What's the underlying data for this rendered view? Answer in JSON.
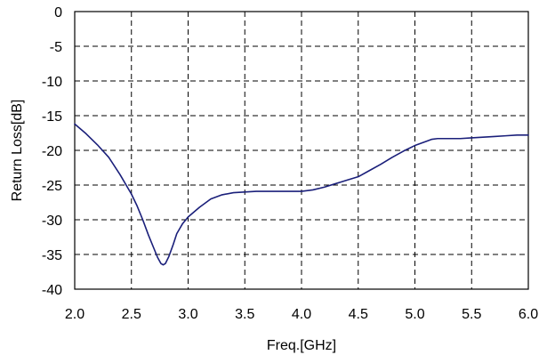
{
  "chart_data": {
    "type": "line",
    "title": "",
    "xlabel": "Freq.[GHz]",
    "ylabel": "Return Loss[dB]",
    "xlim": [
      2.0,
      6.0
    ],
    "ylim": [
      -40,
      0
    ],
    "xticks": [
      "2.0",
      "2.5",
      "3.0",
      "3.5",
      "4.0",
      "4.5",
      "5.0",
      "5.5",
      "6.0"
    ],
    "yticks": [
      "0",
      "-5",
      "-10",
      "-15",
      "-20",
      "-25",
      "-30",
      "-35",
      "-40"
    ],
    "grid": true,
    "line_color": "#1a1f7a",
    "series": [
      {
        "x": [
          2.0,
          2.1,
          2.2,
          2.3,
          2.4,
          2.5,
          2.55,
          2.6,
          2.65,
          2.7,
          2.73,
          2.76,
          2.78,
          2.8,
          2.83,
          2.87,
          2.9,
          2.95,
          3.0,
          3.1,
          3.2,
          3.3,
          3.4,
          3.5,
          3.6,
          3.7,
          3.8,
          3.9,
          4.0,
          4.1,
          4.2,
          4.3,
          4.4,
          4.5,
          4.6,
          4.7,
          4.8,
          4.9,
          5.0,
          5.1,
          5.15,
          5.2,
          5.3,
          5.4,
          5.5,
          5.6,
          5.7,
          5.8,
          5.9,
          6.0
        ],
        "values": [
          -16.2,
          -17.6,
          -19.2,
          -21.0,
          -23.5,
          -26.3,
          -28.0,
          -30.0,
          -32.2,
          -34.2,
          -35.4,
          -36.3,
          -36.5,
          -36.3,
          -35.3,
          -33.5,
          -32.0,
          -30.6,
          -29.6,
          -28.2,
          -27.0,
          -26.4,
          -26.1,
          -26.0,
          -25.9,
          -25.9,
          -25.9,
          -25.9,
          -25.9,
          -25.7,
          -25.3,
          -24.8,
          -24.3,
          -23.8,
          -22.9,
          -22.0,
          -21.0,
          -20.1,
          -19.3,
          -18.7,
          -18.4,
          -18.3,
          -18.3,
          -18.3,
          -18.2,
          -18.1,
          -18.0,
          -17.9,
          -17.8,
          -17.8
        ]
      }
    ]
  }
}
